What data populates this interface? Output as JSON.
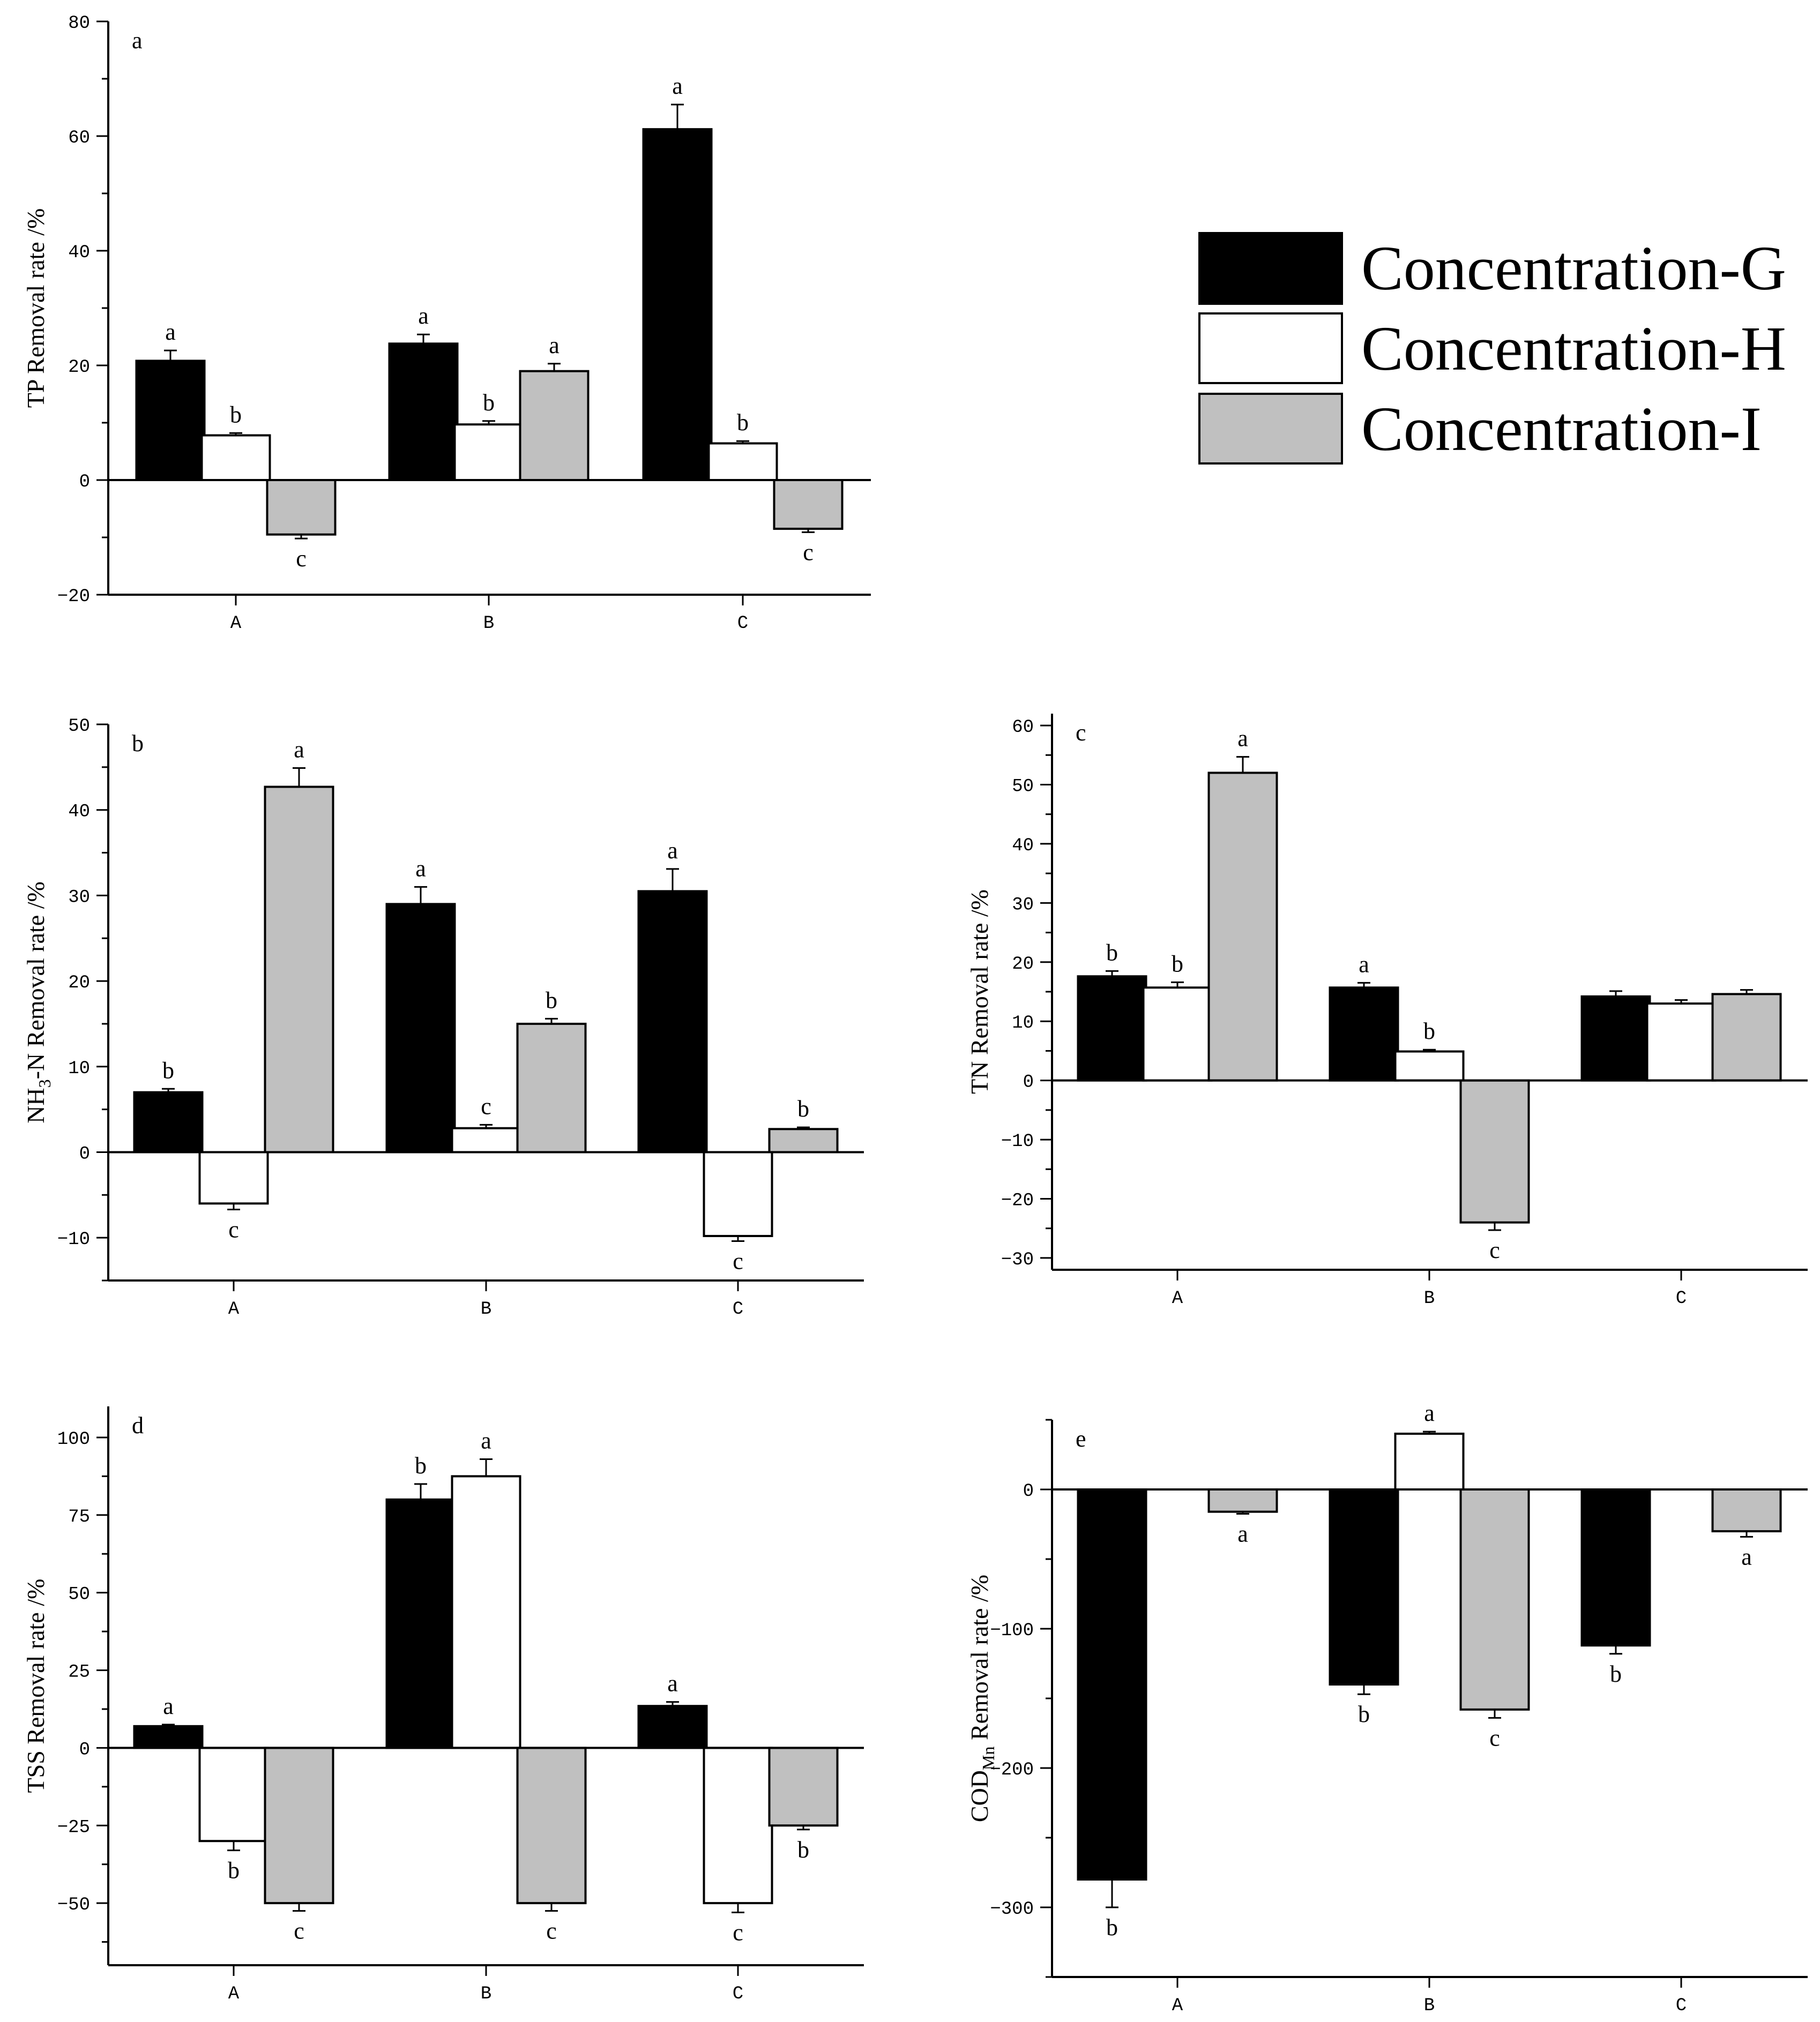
{
  "colors": {
    "G": "#000000",
    "H": "#ffffff",
    "I": "#c0c0c0",
    "axis": "#000000"
  },
  "legend": [
    {
      "key": "G",
      "label": "Concentration-G"
    },
    {
      "key": "H",
      "label": "Concentration-H"
    },
    {
      "key": "I",
      "label": "Concentration-I"
    }
  ],
  "chart_data": [
    {
      "id": "a",
      "type": "bar",
      "panel_letter": "a",
      "ylabel": "TP Removal rate /%",
      "categories": [
        "A",
        "B",
        "C"
      ],
      "ylim": [
        -20,
        80
      ],
      "yticks": [
        -20,
        0,
        20,
        40,
        60,
        80
      ],
      "ytick_labels": [
        "−20",
        "0",
        "20",
        "40",
        "60",
        "80"
      ],
      "series": [
        {
          "key": "G",
          "name": "Concentration-G",
          "values": [
            20.8,
            23.8,
            61.2
          ],
          "errors": [
            1.8,
            1.6,
            4.3
          ],
          "letters": [
            "a",
            "a",
            "a"
          ]
        },
        {
          "key": "H",
          "name": "Concentration-H",
          "values": [
            7.8,
            9.7,
            6.4
          ],
          "errors": [
            0.4,
            0.6,
            0.4
          ],
          "letters": [
            "b",
            "b",
            "b"
          ]
        },
        {
          "key": "I",
          "name": "Concentration-I",
          "values": [
            -9.5,
            19.0,
            -8.5
          ],
          "errors": [
            0.7,
            1.3,
            0.6
          ],
          "letters": [
            "c",
            "a",
            "c"
          ]
        }
      ]
    },
    {
      "id": "b",
      "type": "bar",
      "panel_letter": "b",
      "ylabel": "NH3-N Removal rate /%",
      "ylabel_parts": {
        "pre": "NH",
        "sub": "3",
        "post": "-N Removal rate /%"
      },
      "categories": [
        "A",
        "B",
        "C"
      ],
      "ylim": [
        -15,
        50
      ],
      "yticks": [
        -10,
        0,
        10,
        20,
        30,
        40,
        50
      ],
      "ytick_labels": [
        "−10",
        "0",
        "10",
        "20",
        "30",
        "40",
        "50"
      ],
      "series": [
        {
          "key": "G",
          "name": "Concentration-G",
          "values": [
            7.0,
            29.0,
            30.5
          ],
          "errors": [
            0.4,
            2.0,
            2.6
          ],
          "letters": [
            "b",
            "a",
            "a"
          ]
        },
        {
          "key": "H",
          "name": "Concentration-H",
          "values": [
            -6.0,
            2.8,
            -9.8
          ],
          "errors": [
            0.7,
            0.4,
            0.6
          ],
          "letters": [
            "c",
            "c",
            "c"
          ]
        },
        {
          "key": "I",
          "name": "Concentration-I",
          "values": [
            42.7,
            15.0,
            2.7
          ],
          "errors": [
            2.2,
            0.6,
            0.2
          ],
          "letters": [
            "a",
            "b",
            "b"
          ]
        }
      ]
    },
    {
      "id": "c",
      "type": "bar",
      "panel_letter": "c",
      "ylabel": "TN Removal rate /%",
      "categories": [
        "A",
        "B",
        "C"
      ],
      "ylim": [
        -32,
        62
      ],
      "yticks": [
        -30,
        -20,
        -10,
        0,
        10,
        20,
        30,
        40,
        50,
        60
      ],
      "ytick_labels": [
        "−30",
        "−20",
        "−10",
        "0",
        "10",
        "20",
        "30",
        "40",
        "50",
        "60"
      ],
      "series": [
        {
          "key": "G",
          "name": "Concentration-G",
          "values": [
            17.6,
            15.7,
            14.2
          ],
          "errors": [
            0.9,
            0.8,
            0.9
          ],
          "letters": [
            "b",
            "a",
            ""
          ]
        },
        {
          "key": "H",
          "name": "Concentration-H",
          "values": [
            15.7,
            4.9,
            13.0
          ],
          "errors": [
            0.9,
            0.3,
            0.6
          ],
          "letters": [
            "b",
            "b",
            ""
          ]
        },
        {
          "key": "I",
          "name": "Concentration-I",
          "values": [
            52.0,
            -24.0,
            14.6
          ],
          "errors": [
            2.7,
            1.3,
            0.7
          ],
          "letters": [
            "a",
            "c",
            ""
          ]
        }
      ]
    },
    {
      "id": "d",
      "type": "bar",
      "panel_letter": "d",
      "ylabel": "TSS Removal rate /%",
      "categories": [
        "A",
        "B",
        "C"
      ],
      "ylim": [
        -70,
        110
      ],
      "yticks": [
        -50,
        -25,
        0,
        25,
        50,
        75,
        100
      ],
      "ytick_labels": [
        "−50",
        "−25",
        "0",
        "25",
        "50",
        "75",
        "100"
      ],
      "series": [
        {
          "key": "G",
          "name": "Concentration-G",
          "values": [
            7.0,
            80.0,
            13.5
          ],
          "errors": [
            0.5,
            5.0,
            1.3
          ],
          "letters": [
            "a",
            "b",
            "a"
          ]
        },
        {
          "key": "H",
          "name": "Concentration-H",
          "values": [
            -30.0,
            87.5,
            -50.0
          ],
          "errors": [
            3.0,
            5.5,
            3.0
          ],
          "letters": [
            "b",
            "a",
            "c"
          ]
        },
        {
          "key": "I",
          "name": "Concentration-I",
          "values": [
            -50.0,
            -50.0,
            -25.0
          ],
          "errors": [
            2.5,
            2.5,
            1.3
          ],
          "letters": [
            "c",
            "c",
            "b"
          ]
        }
      ]
    },
    {
      "id": "e",
      "type": "bar",
      "panel_letter": "e",
      "ylabel": "CODMn Removal rate /%",
      "ylabel_parts": {
        "pre": "COD",
        "sub": "Mn",
        "post": " Removal rate /%"
      },
      "categories": [
        "A",
        "B",
        "C"
      ],
      "ylim": [
        -350,
        50
      ],
      "yticks": [
        -300,
        -200,
        -100,
        0
      ],
      "ytick_labels": [
        "−300",
        "−200",
        "−100",
        "0"
      ],
      "series": [
        {
          "key": "G",
          "name": "Concentration-G",
          "values": [
            -280.0,
            -140.0,
            -112.0
          ],
          "errors": [
            20.0,
            7.0,
            6.0
          ],
          "letters": [
            "b",
            "b",
            "b"
          ]
        },
        {
          "key": "H",
          "name": "Concentration-H",
          "values": [
            0,
            40.0,
            0
          ],
          "errors": [
            0,
            1.5,
            0
          ],
          "letters": [
            "",
            "a",
            ""
          ]
        },
        {
          "key": "I",
          "name": "Concentration-I",
          "values": [
            -16.0,
            -158.0,
            -30.0
          ],
          "errors": [
            1.5,
            6.0,
            4.0
          ],
          "letters": [
            "a",
            "c",
            "a"
          ]
        }
      ]
    }
  ]
}
